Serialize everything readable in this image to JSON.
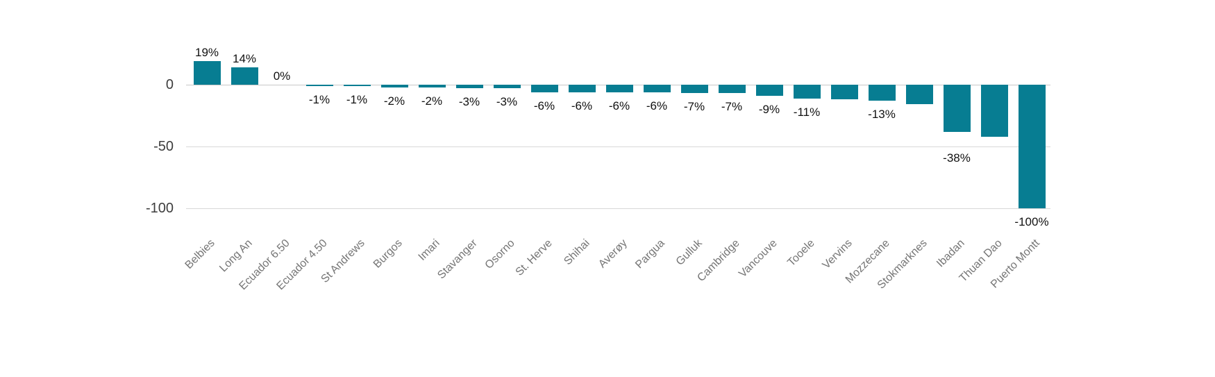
{
  "chart_data": {
    "type": "bar",
    "title": "",
    "categories": [
      "Belbies",
      "Long An",
      "Ecuador 6.50",
      "Ecuador 4.50",
      "St Andrews",
      "Burgos",
      "Imari",
      "Stavanger",
      "Osorno",
      "St. Herve",
      "Shihai",
      "Averøy",
      "Pargua",
      "Gulluk",
      "Cambridge",
      "Vancouve",
      "Tooele",
      "Vervins",
      "Mozzecane",
      "Stokmarknes",
      "Ibadan",
      "Thuan Dao",
      "Puerto Montt"
    ],
    "values": [
      19,
      14,
      0,
      -1,
      -1,
      -2,
      -2,
      -3,
      -3,
      -6,
      -6,
      -6,
      -6,
      -7,
      -7,
      -9,
      -11,
      -12,
      -13,
      -16,
      -38,
      -42,
      -100
    ],
    "bar_labels": [
      "19%",
      "14%",
      "0%",
      "-1%",
      "-1%",
      "-2%",
      "-2%",
      "-3%",
      "-3%",
      "-6%",
      "-6%",
      "-6%",
      "-6%",
      "-7%",
      "-7%",
      "-9%",
      "-11%",
      "",
      "-13%",
      "",
      "-38%",
      "",
      "-100%"
    ],
    "xlabel": "",
    "ylabel": "",
    "y_axis": {
      "ticks": [
        0,
        -50,
        -100
      ],
      "tick_labels": [
        "0",
        "-50",
        "-100"
      ],
      "range": [
        -100,
        20
      ]
    },
    "grid": "horizontal",
    "legend": "none",
    "colors": {
      "bar": "#077d92",
      "gridline": "#d8d8d8",
      "zero_line": "#c8c8c8",
      "y_tick_text": "#3d3d3d",
      "category_text": "#757575",
      "value_label_text": "#111111"
    }
  }
}
